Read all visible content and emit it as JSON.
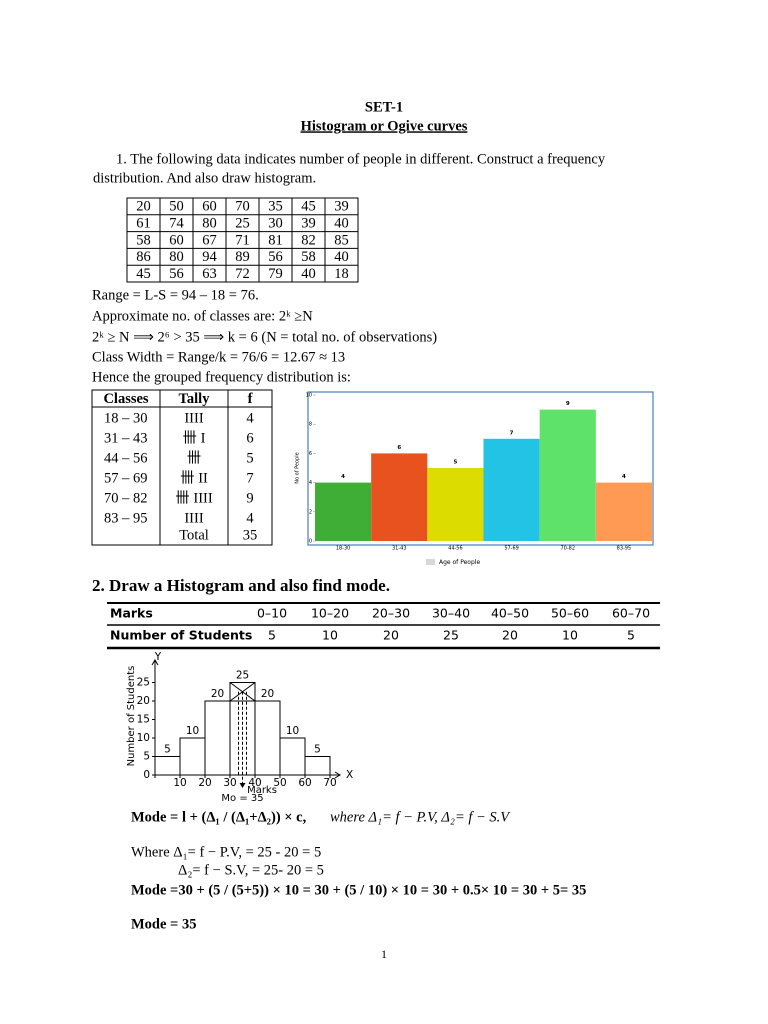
{
  "header": {
    "set": "SET-1",
    "title": "Histogram or Ogive curves"
  },
  "question1": {
    "lines": [
      "1. The following data indicates number of people in different.  Construct a frequency",
      "distribution. And also draw histogram."
    ],
    "data_table": [
      [
        20,
        50,
        60,
        70,
        35,
        45,
        39
      ],
      [
        61,
        74,
        80,
        25,
        30,
        39,
        40
      ],
      [
        58,
        60,
        67,
        71,
        81,
        82,
        85
      ],
      [
        86,
        80,
        94,
        89,
        56,
        58,
        40
      ],
      [
        45,
        56,
        63,
        72,
        79,
        40,
        18
      ]
    ],
    "steps": [
      "Range = L-S = 94 – 18 = 76.",
      "Approximate no. of classes are: 2ᵏ ≥N",
      "2ᵏ ≥ N ⟹ 2⁶ > 35 ⟹ k = 6 (N = total no. of observations)",
      "Class Width = Range/k = 76/6 = 12.67  ≈  13",
      "Hence the grouped frequency distribution  is:"
    ],
    "freq_table": {
      "headers": [
        "Classes",
        "Tally",
        "f"
      ],
      "rows": [
        [
          "18 – 30",
          "IIII",
          4
        ],
        [
          "31 – 43",
          "卌 I",
          6
        ],
        [
          "44 – 56",
          "卌",
          5
        ],
        [
          "57 – 69",
          "卌 II",
          7
        ],
        [
          "70 – 82",
          "卌 IIII",
          9
        ],
        [
          "83 – 95",
          "IIII",
          4
        ]
      ],
      "total": [
        "Total",
        35
      ]
    }
  },
  "question2": {
    "title": "2. Draw a Histogram and also find mode.",
    "table": [
      [
        "Marks",
        "0–10",
        "10–20",
        "20–30",
        "30–40",
        "40–50",
        "50–60",
        "60–70"
      ],
      [
        "Number of Students",
        5,
        10,
        20,
        25,
        20,
        10,
        5
      ]
    ],
    "formula": "Mode = l + (Δ₁ / (Δ₁+Δ₂)) × c,",
    "formula_where": "where  Δ₁= f − P.V, Δ₂= f − S.V",
    "work": [
      "Where  Δ₁= f − P.V,   = 25 - 20 = 5",
      "Δ₂= f − S.V,   = 25- 20 = 5",
      "Mode =30 + (5 / (5+5)) × 10 = 30 + (5 / 10) × 10 = 30 + 0.5× 10 = 30 + 5= 35"
    ],
    "answer": "Mode = 35"
  },
  "page_number": 1,
  "chart_data": [
    {
      "type": "bar",
      "categories": [
        "18-30",
        "31-43",
        "44-56",
        "57-69",
        "70-82",
        "83-95"
      ],
      "values": [
        4,
        6,
        5,
        7,
        9,
        4
      ],
      "colors": [
        "#3fae37",
        "#e8521f",
        "#dcdc00",
        "#23c3e6",
        "#5fe26a",
        "#ff9a55"
      ],
      "ylim": [
        0,
        10
      ],
      "yticks": [
        0,
        2,
        4,
        6,
        8,
        10
      ],
      "y_label": "No of People",
      "legend": "Age of People",
      "grid": false
    },
    {
      "type": "histogram",
      "bins": [
        0,
        10,
        20,
        30,
        40,
        50,
        60,
        70
      ],
      "values": [
        5,
        10,
        20,
        25,
        20,
        10,
        5
      ],
      "color": "#ffffff",
      "xlim": [
        0,
        74
      ],
      "ylim": [
        0,
        30
      ],
      "xticks": [
        0,
        10,
        20,
        30,
        40,
        50,
        60,
        70
      ],
      "yticks": [
        0,
        5,
        10,
        15,
        20,
        25
      ],
      "x_label": "Marks",
      "y_label": "Number of Students",
      "x_axis_letter": "X",
      "y_axis_letter": "Y",
      "annotation": "Mo = 35"
    }
  ]
}
